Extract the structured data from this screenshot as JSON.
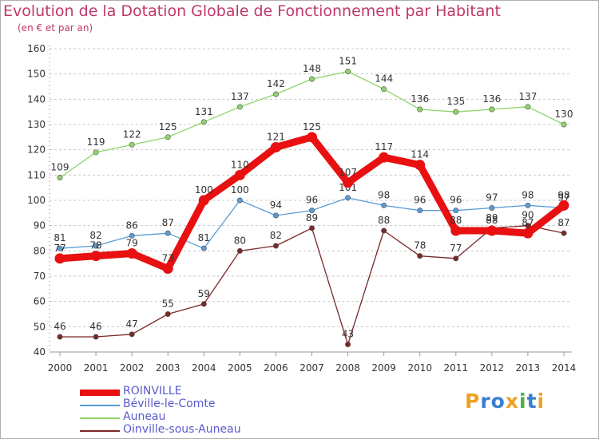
{
  "title": "Evolution de la Dotation Globale de Fonctionnement par Habitant",
  "subtitle": "(en € et par an)",
  "logo": {
    "text": "Proxiti",
    "letters": [
      "P",
      "r",
      "o",
      "x",
      "i",
      "t",
      "i"
    ],
    "colors": [
      "#f0a020",
      "#3a7fd0",
      "#3a7fd0",
      "#f0a020",
      "#4ab04a",
      "#3a7fd0",
      "#f0a020"
    ]
  },
  "chart_data": {
    "type": "line",
    "title": "Evolution de la Dotation Globale de Fonctionnement par Habitant",
    "subtitle": "(en € et par an)",
    "xlabel": "",
    "ylabel": "",
    "ylim": [
      40,
      160
    ],
    "yticks": [
      40,
      50,
      60,
      70,
      80,
      90,
      100,
      110,
      120,
      130,
      140,
      150,
      160
    ],
    "x": [
      "2000",
      "2001",
      "2002",
      "2003",
      "2004",
      "2005",
      "2006",
      "2007",
      "2008",
      "2009",
      "2010",
      "2011",
      "2012",
      "2013",
      "2014"
    ],
    "legend_position": "bottom-left",
    "series": [
      {
        "name": "Oinville-sous-Auneau",
        "color": "#7a2828",
        "weight": "thin",
        "values": [
          46,
          46,
          47,
          55,
          59,
          80,
          82,
          89,
          43,
          88,
          78,
          77,
          89,
          90,
          87
        ],
        "labels": [
          "46",
          "46",
          "47",
          "55",
          "59",
          "80",
          "82",
          "89",
          "43",
          "88",
          "78",
          "77",
          "89",
          "90",
          "87"
        ]
      },
      {
        "name": "Auneau",
        "color": "#8fd46a",
        "weight": "thin",
        "values": [
          109,
          119,
          122,
          125,
          131,
          137,
          142,
          148,
          151,
          144,
          136,
          135,
          136,
          137,
          130
        ],
        "labels": [
          "109",
          "119",
          "122",
          "125",
          "131",
          "137",
          "142",
          "148",
          "151",
          "144",
          "136",
          "135",
          "136",
          "137",
          "130"
        ]
      },
      {
        "name": "Béville-le-Comte",
        "color": "#5a9bd5",
        "weight": "thin",
        "values": [
          81,
          82,
          86,
          87,
          81,
          100,
          94,
          96,
          101,
          98,
          96,
          96,
          97,
          98,
          97
        ],
        "labels": [
          "81",
          "82",
          "86",
          "87",
          "81",
          "100",
          "94",
          "96",
          "101",
          "98",
          "96",
          "96",
          "97",
          "98",
          "97"
        ]
      },
      {
        "name": "ROINVILLE",
        "color": "#e81010",
        "weight": "thick",
        "values": [
          77,
          78,
          79,
          73,
          100,
          110,
          121,
          125,
          107,
          117,
          114,
          88,
          88,
          87,
          98
        ],
        "labels": [
          "77",
          "78",
          "79",
          "73",
          "100",
          "110",
          "121",
          "125",
          "107",
          "117",
          "114",
          "88",
          "88",
          "87",
          "98"
        ]
      }
    ],
    "legend_order": [
      "ROINVILLE",
      "Béville-le-Comte",
      "Auneau",
      "Oinville-sous-Auneau"
    ]
  }
}
